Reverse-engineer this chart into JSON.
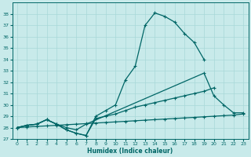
{
  "xlabel": "Humidex (Indice chaleur)",
  "bg_color": "#c8eaea",
  "grid_color": "#a8d8d8",
  "line_color": "#006666",
  "xlim": [
    -0.5,
    23.5
  ],
  "ylim": [
    27,
    39
  ],
  "xticks": [
    0,
    1,
    2,
    3,
    4,
    5,
    6,
    7,
    8,
    9,
    10,
    11,
    12,
    13,
    14,
    15,
    16,
    17,
    18,
    19,
    20,
    21,
    22,
    23
  ],
  "yticks": [
    27,
    28,
    29,
    30,
    31,
    32,
    33,
    34,
    35,
    36,
    37,
    38
  ],
  "series1_x": [
    0,
    1,
    2,
    3,
    4,
    5,
    6,
    7,
    8,
    9,
    10,
    11,
    12,
    13,
    14,
    15,
    16,
    17,
    18,
    19
  ],
  "series1_y": [
    28.0,
    28.2,
    28.3,
    28.7,
    28.3,
    27.8,
    27.5,
    27.3,
    29.0,
    29.5,
    30.0,
    32.2,
    33.4,
    37.0,
    38.1,
    37.8,
    37.3,
    36.3,
    35.5,
    34.0
  ],
  "series2_x": [
    0,
    1,
    2,
    3,
    4,
    5,
    6,
    7,
    8,
    9,
    10,
    11,
    12,
    13,
    14,
    15,
    16,
    17,
    18,
    19,
    20,
    21,
    22,
    23
  ],
  "series2_y": [
    28.0,
    28.2,
    28.3,
    28.7,
    28.3,
    27.8,
    27.5,
    27.3,
    28.8,
    29.0,
    29.2,
    29.5,
    29.8,
    30.0,
    30.2,
    30.4,
    30.6,
    30.8,
    31.0,
    31.2,
    31.5,
    null,
    null,
    null
  ],
  "series3_x": [
    0,
    1,
    2,
    3,
    4,
    5,
    6,
    7,
    19,
    20,
    21,
    22,
    23
  ],
  "series3_y": [
    28.0,
    28.2,
    28.3,
    28.7,
    28.3,
    28.0,
    27.8,
    28.3,
    32.8,
    30.8,
    30.0,
    29.3,
    29.3
  ],
  "series4_x": [
    0,
    1,
    2,
    3,
    4,
    5,
    6,
    7,
    8,
    9,
    10,
    11,
    12,
    13,
    14,
    15,
    16,
    17,
    18,
    19,
    20,
    21,
    22,
    23
  ],
  "series4_y": [
    28.0,
    28.05,
    28.1,
    28.15,
    28.2,
    28.25,
    28.3,
    28.35,
    28.4,
    28.45,
    28.5,
    28.55,
    28.6,
    28.65,
    28.7,
    28.75,
    28.8,
    28.85,
    28.9,
    28.95,
    29.0,
    29.05,
    29.1,
    29.2
  ]
}
